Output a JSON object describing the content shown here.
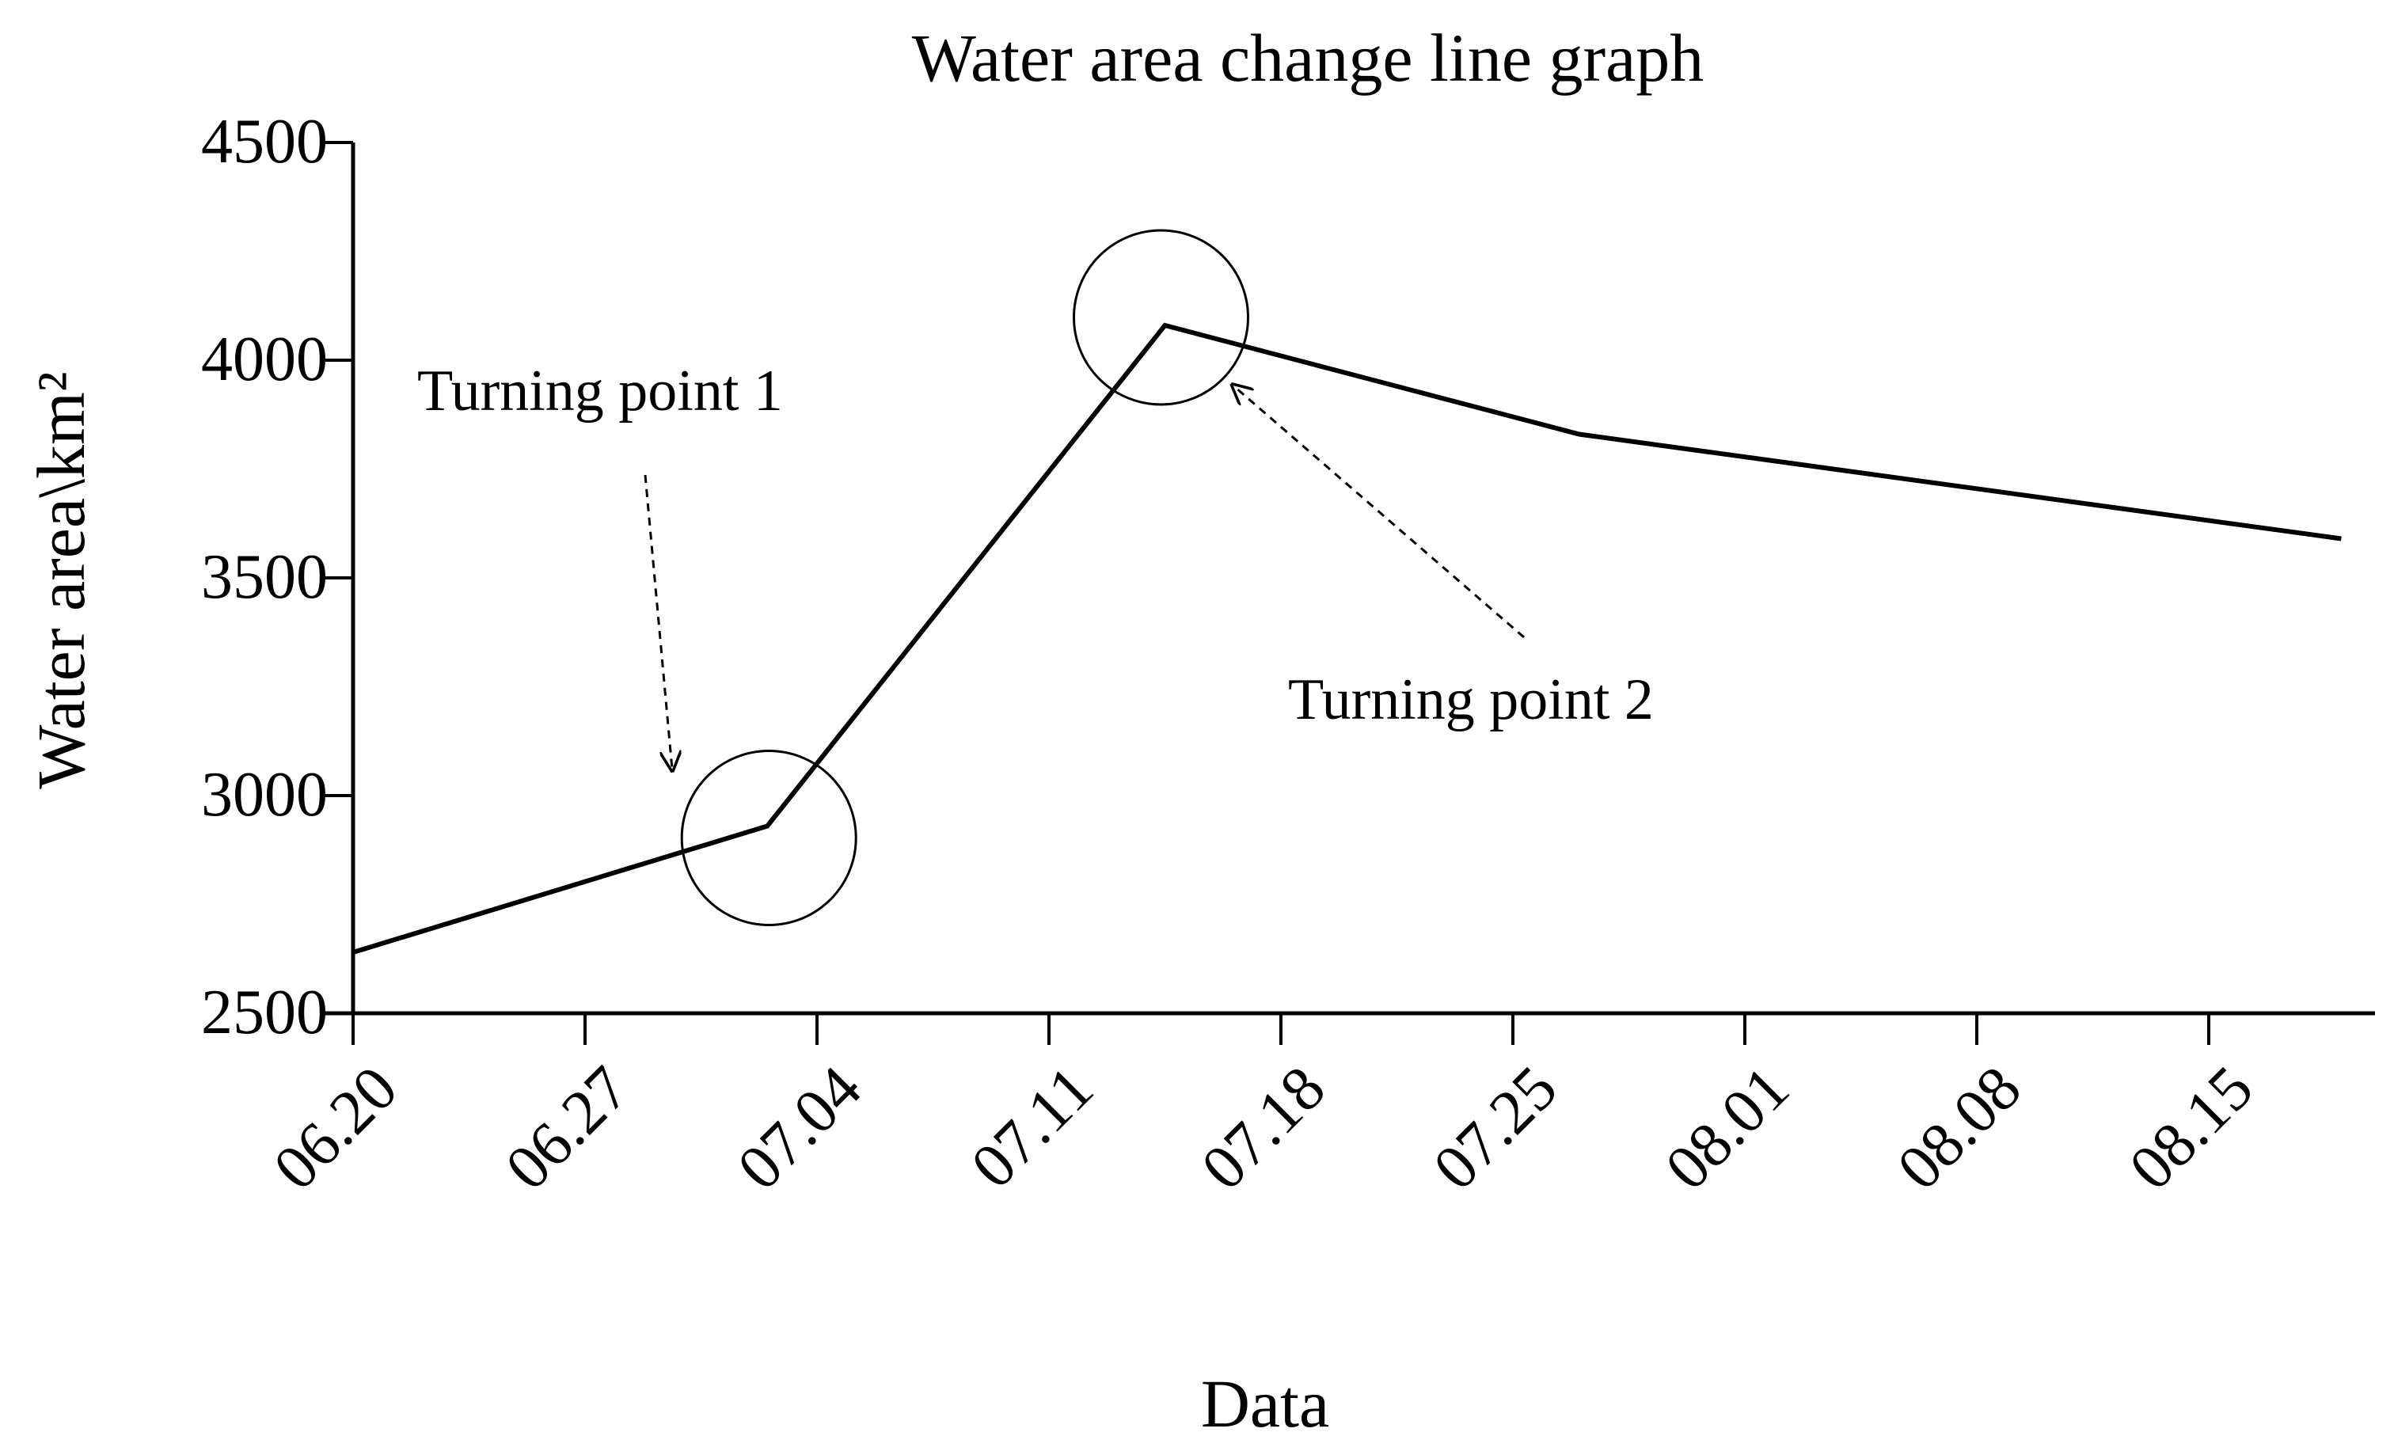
{
  "chart_data": {
    "type": "line",
    "title": "Water area change line graph",
    "xlabel": "Data",
    "ylabel": "Water area\\km²",
    "x_ticks": [
      "06.20",
      "06.27",
      "07.04",
      "07.11",
      "07.18",
      "07.25",
      "08.01",
      "08.08",
      "08.15"
    ],
    "ylim": [
      2500,
      4500
    ],
    "y_ticks": [
      2500,
      3000,
      3500,
      4000,
      4500
    ],
    "y_tick_labels": [
      "2500",
      "3000",
      "3500",
      "4000",
      "4500"
    ],
    "series": [
      {
        "name": "Water area",
        "x_days": [
          0,
          12.5,
          24.5,
          37,
          60
        ],
        "values": [
          2640,
          2930,
          4080,
          3830,
          3590
        ]
      }
    ],
    "grid": false,
    "annotations": [
      {
        "text": "Turning point 1",
        "target_point_index": 1
      },
      {
        "text": "Turning point 2",
        "target_point_index": 2
      }
    ],
    "colors": {
      "line": "#000000",
      "axis": "#000000",
      "background": "#ffffff"
    }
  }
}
